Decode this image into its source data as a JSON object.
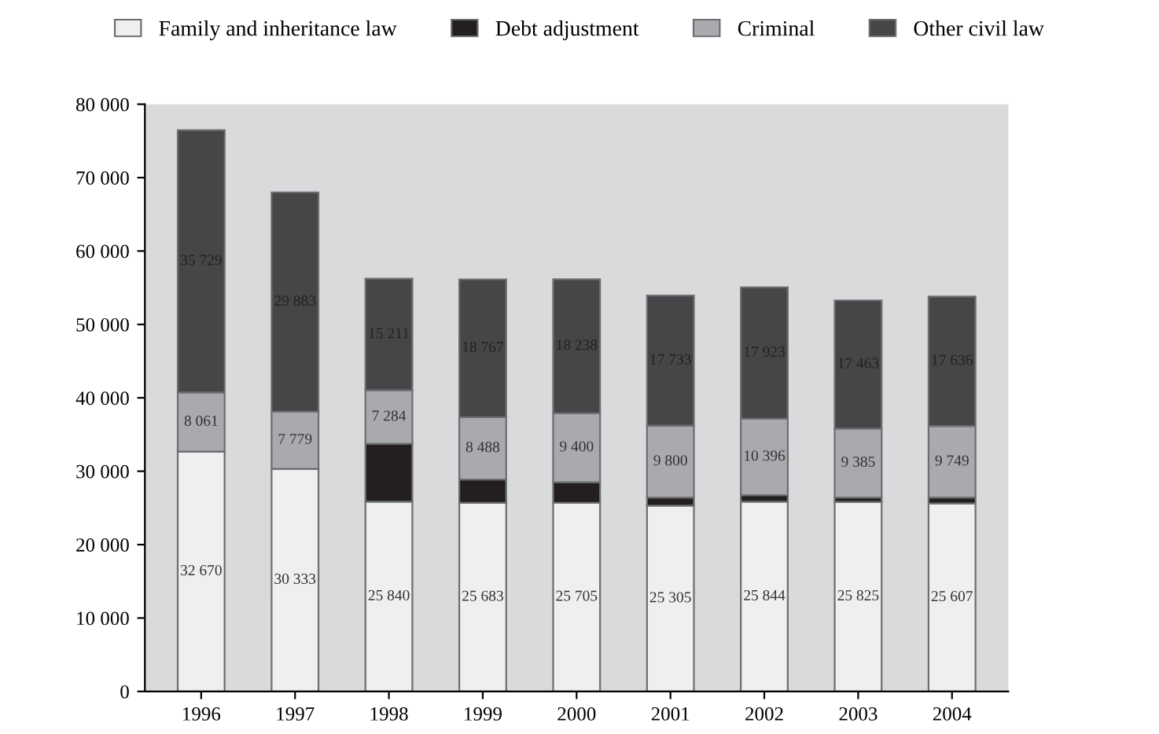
{
  "chart_data": {
    "type": "bar",
    "stacked": true,
    "categories": [
      "1996",
      "1997",
      "1998",
      "1999",
      "2000",
      "2001",
      "2002",
      "2003",
      "2004"
    ],
    "series": [
      {
        "name": "Family and inheritance law",
        "color": "#eeeff1",
        "values": [
          32670,
          30333,
          25840,
          25683,
          25705,
          25305,
          25844,
          25825,
          25607
        ],
        "value_labels": [
          "32 670",
          "30 333",
          "25 840",
          "25 683",
          "25 705",
          "25 305",
          "25 844",
          "25 825",
          "25 607"
        ]
      },
      {
        "name": "Debt adjustment",
        "color": "#231f20",
        "values": [
          null,
          null,
          7900,
          3200,
          2800,
          1100,
          900,
          600,
          800
        ]
      },
      {
        "name": "Criminal",
        "color": "#a9aaad",
        "values": [
          8061,
          7779,
          7284,
          8488,
          9400,
          9800,
          10396,
          9385,
          9749
        ],
        "value_labels": [
          "8 061",
          "7 779",
          "7 284",
          "8 488",
          "9 400",
          "9 800",
          "10 396",
          "9 385",
          "9 749"
        ]
      },
      {
        "name": "Other civil law",
        "color": "#454648",
        "values": [
          35729,
          29883,
          15211,
          18767,
          18238,
          17733,
          17923,
          17463,
          17636
        ],
        "value_labels": [
          "35 729",
          "29 883",
          "15 211",
          "18 767",
          "18 238",
          "17 733",
          "17 923",
          "17 463",
          "17 636"
        ]
      }
    ],
    "ylim": [
      0,
      80000
    ],
    "yticks": [
      {
        "value": 0,
        "label": "0"
      },
      {
        "value": 10000,
        "label": "10 000"
      },
      {
        "value": 20000,
        "label": "20 000"
      },
      {
        "value": 30000,
        "label": "30 000"
      },
      {
        "value": 40000,
        "label": "40 000"
      },
      {
        "value": 50000,
        "label": "50 000"
      },
      {
        "value": 60000,
        "label": "60 000"
      },
      {
        "value": 70000,
        "label": "70 000"
      },
      {
        "value": 80000,
        "label": "80 000"
      }
    ],
    "legend": "top",
    "grid": false
  }
}
